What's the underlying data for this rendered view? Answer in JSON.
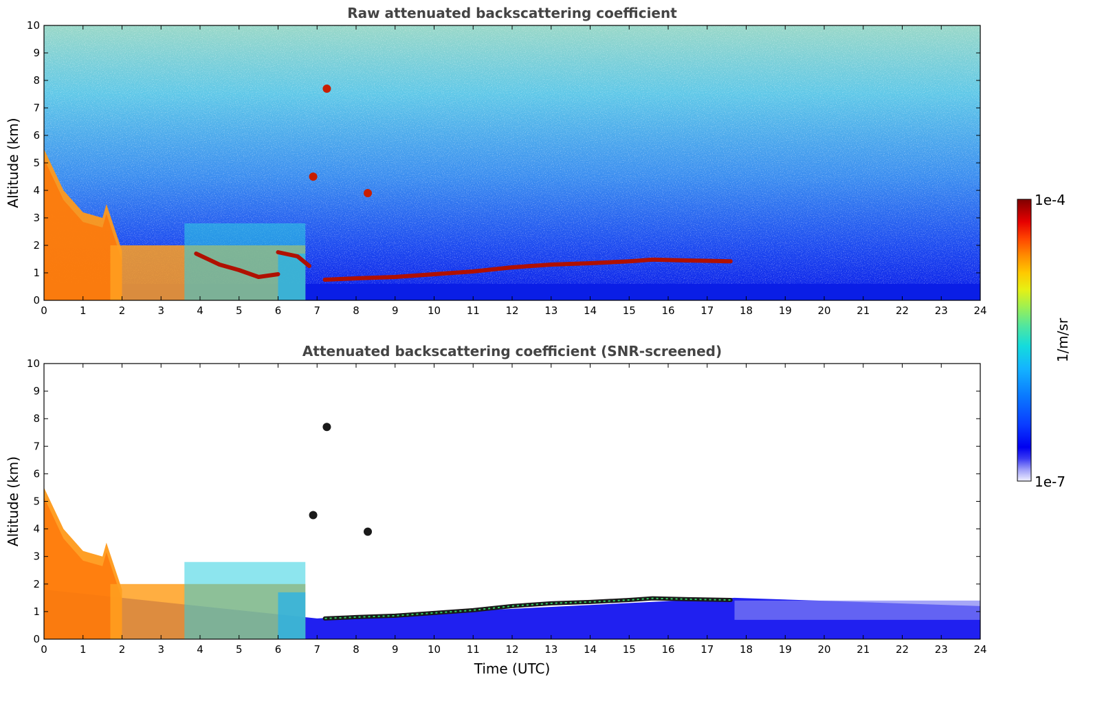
{
  "chart_data": [
    {
      "type": "heatmap",
      "title": "Raw attenuated backscattering coefficient",
      "xlabel": "",
      "ylabel": "Altitude (km)",
      "xlim": [
        0,
        24
      ],
      "ylim": [
        0,
        10
      ],
      "xticks": [
        0,
        1,
        2,
        3,
        4,
        5,
        6,
        7,
        8,
        9,
        10,
        11,
        12,
        13,
        14,
        15,
        16,
        17,
        18,
        19,
        20,
        21,
        22,
        23,
        24
      ],
      "yticks": [
        0,
        1,
        2,
        3,
        4,
        5,
        6,
        7,
        8,
        9,
        10
      ],
      "grid": false,
      "colorscale": "log",
      "clim": [
        "1e-7",
        "1e-4"
      ],
      "features": {
        "boundary_layer": {
          "altitude_km": [
            0,
            0.6
          ],
          "level": 0.3
        },
        "cloud_layer_top": {
          "time_utc": [
            0,
            0.5,
            1.0,
            1.5,
            1.6,
            2.0
          ],
          "altitude_km": [
            5.5,
            4.0,
            3.2,
            3.0,
            3.5,
            1.8
          ]
        },
        "cloud_layer_bottom": {
          "time_utc": [
            0,
            0.5,
            1.0,
            1.5,
            2.0
          ],
          "altitude_km": [
            4.5,
            3.0,
            2.4,
            2.3,
            1.0
          ]
        },
        "lower_cloud_region": {
          "time_utc": [
            1.7,
            6.7
          ],
          "altitude_km": [
            0,
            2.8
          ]
        },
        "cloud_line_1": {
          "time_utc": [
            3.9,
            4.5,
            5.0,
            5.5,
            6.0
          ],
          "altitude_km": [
            1.7,
            1.3,
            1.1,
            0.85,
            0.95
          ]
        },
        "cloud_line_2": {
          "time_utc": [
            6.0,
            6.5,
            6.8
          ],
          "altitude_km": [
            1.75,
            1.6,
            1.25
          ]
        },
        "stratocumulus_line": {
          "time_utc": [
            7.2,
            8.0,
            9.0,
            10.0,
            11.0,
            12.0,
            13.0,
            14.0,
            15.0,
            15.6,
            16.5,
            17.6
          ],
          "altitude_km": [
            0.75,
            0.8,
            0.85,
            0.95,
            1.05,
            1.2,
            1.3,
            1.35,
            1.42,
            1.48,
            1.45,
            1.42
          ]
        },
        "isolated_features": [
          {
            "time_utc": 6.9,
            "altitude_km": 4.5
          },
          {
            "time_utc": 7.25,
            "altitude_km": 7.7
          },
          {
            "time_utc": 8.3,
            "altitude_km": 3.9
          }
        ]
      }
    },
    {
      "type": "heatmap",
      "title": "Attenuated backscattering coefficient (SNR-screened)",
      "xlabel": "Time (UTC)",
      "ylabel": "Altitude (km)",
      "xlim": [
        0,
        24
      ],
      "ylim": [
        0,
        10
      ],
      "xticks": [
        0,
        1,
        2,
        3,
        4,
        5,
        6,
        7,
        8,
        9,
        10,
        11,
        12,
        13,
        14,
        15,
        16,
        17,
        18,
        19,
        20,
        21,
        22,
        23,
        24
      ],
      "yticks": [
        0,
        1,
        2,
        3,
        4,
        5,
        6,
        7,
        8,
        9,
        10
      ],
      "grid": false,
      "colorscale": "log",
      "clim": [
        "1e-7",
        "1e-4"
      ],
      "features": {
        "boundary_layer_screened": {
          "time_utc": [
            0,
            7,
            17.7,
            24
          ],
          "top_km": [
            1.8,
            0.75,
            1.5,
            1.2
          ]
        },
        "cloud_layer_top": {
          "time_utc": [
            0,
            0.5,
            1.0,
            1.5,
            1.6,
            2.0
          ],
          "altitude_km": [
            5.5,
            4.0,
            3.2,
            3.0,
            3.5,
            1.8
          ]
        },
        "stratocumulus_line": {
          "time_utc": [
            7.2,
            8.0,
            9.0,
            10.0,
            11.0,
            12.0,
            13.0,
            14.0,
            15.0,
            15.6,
            16.5,
            17.6
          ],
          "altitude_km": [
            0.75,
            0.8,
            0.85,
            0.95,
            1.05,
            1.2,
            1.3,
            1.35,
            1.42,
            1.48,
            1.45,
            1.42
          ]
        }
      }
    }
  ],
  "colorbar": {
    "label": "1/m/sr",
    "max_label": "1e-4",
    "min_label": "1e-7",
    "stops": [
      "#f0f0ff",
      "#a0a0f8",
      "#3a3af2",
      "#0000f0",
      "#0a3cff",
      "#0a78ff",
      "#14b4ff",
      "#14dcdc",
      "#50e6a0",
      "#a0f050",
      "#e6f014",
      "#ffc800",
      "#ff8c00",
      "#ff4600",
      "#e60000",
      "#b40000",
      "#800000"
    ]
  }
}
